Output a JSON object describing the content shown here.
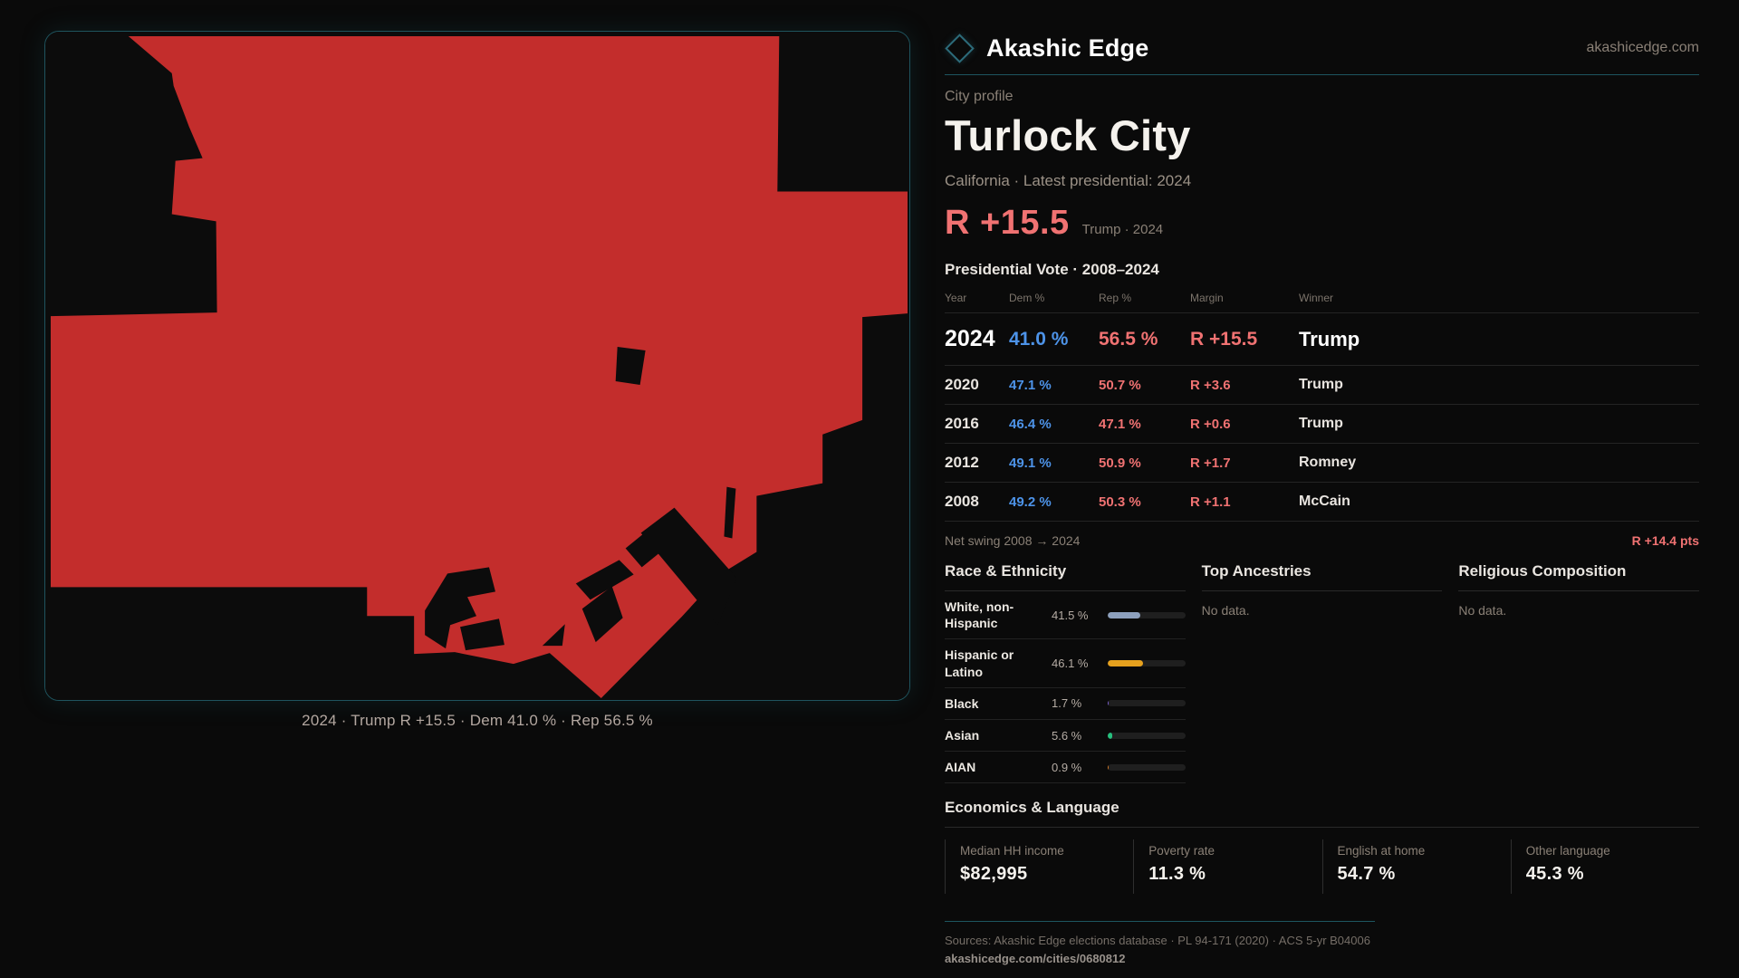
{
  "brand": {
    "name": "Akashic Edge",
    "domain": "akashicedge.com"
  },
  "profile": {
    "kicker": "City profile",
    "title": "Turlock City",
    "subtitle": "California · Latest presidential: 2024",
    "headline_margin": "R +15.5",
    "headline_context": "Trump · 2024"
  },
  "map": {
    "caption": "2024 · Trump R +15.5 · Dem 41.0 % · Rep 56.5 %",
    "fill_color": "#c32d2c"
  },
  "election_table": {
    "title": "Presidential Vote · 2008–2024",
    "columns": [
      "Year",
      "Dem %",
      "Rep %",
      "Margin",
      "Winner"
    ],
    "rows": [
      {
        "year": "2024",
        "dem": "41.0 %",
        "rep": "56.5 %",
        "margin": "R +15.5",
        "winner": "Trump",
        "big": true
      },
      {
        "year": "2020",
        "dem": "47.1 %",
        "rep": "50.7 %",
        "margin": "R +3.6",
        "winner": "Trump",
        "big": false
      },
      {
        "year": "2016",
        "dem": "46.4 %",
        "rep": "47.1 %",
        "margin": "R +0.6",
        "winner": "Trump",
        "big": false
      },
      {
        "year": "2012",
        "dem": "49.1 %",
        "rep": "50.9 %",
        "margin": "R +1.7",
        "winner": "Romney",
        "big": false
      },
      {
        "year": "2008",
        "dem": "49.2 %",
        "rep": "50.3 %",
        "margin": "R +1.1",
        "winner": "McCain",
        "big": false
      }
    ],
    "net_swing_label": "Net swing 2008 → 2024",
    "net_swing_value": "R +14.4 pts"
  },
  "demographics": {
    "race": {
      "title": "Race & Ethnicity",
      "rows": [
        {
          "label": "White, non-Hispanic",
          "value": "41.5 %",
          "pct": 41.5,
          "color": "#8da0bd"
        },
        {
          "label": "Hispanic or Latino",
          "value": "46.1 %",
          "pct": 46.1,
          "color": "#e6a11e"
        },
        {
          "label": "Black",
          "value": "1.7 %",
          "pct": 1.7,
          "color": "#7a5fd0"
        },
        {
          "label": "Asian",
          "value": "5.6 %",
          "pct": 5.6,
          "color": "#27c07e"
        },
        {
          "label": "AIAN",
          "value": "0.9 %",
          "pct": 0.9,
          "color": "#d57a28"
        }
      ]
    },
    "ancestries": {
      "title": "Top Ancestries",
      "empty": "No data."
    },
    "religion": {
      "title": "Religious Composition",
      "empty": "No data."
    }
  },
  "economics": {
    "title": "Economics & Language",
    "stats": [
      {
        "label": "Median HH income",
        "value": "$82,995"
      },
      {
        "label": "Poverty rate",
        "value": "11.3 %"
      },
      {
        "label": "English at home",
        "value": "54.7 %"
      },
      {
        "label": "Other language",
        "value": "45.3 %"
      }
    ]
  },
  "footer": {
    "sources": "Sources: Akashic Edge elections database · PL 94-171 (2020) · ACS 5-yr B04006",
    "permalink": "akashicedge.com/cities/0680812"
  },
  "colors": {
    "accent_teal": "#1d5560",
    "dem_blue": "#4d93e8",
    "rep_red": "#f07272",
    "map_red": "#c32d2c"
  }
}
